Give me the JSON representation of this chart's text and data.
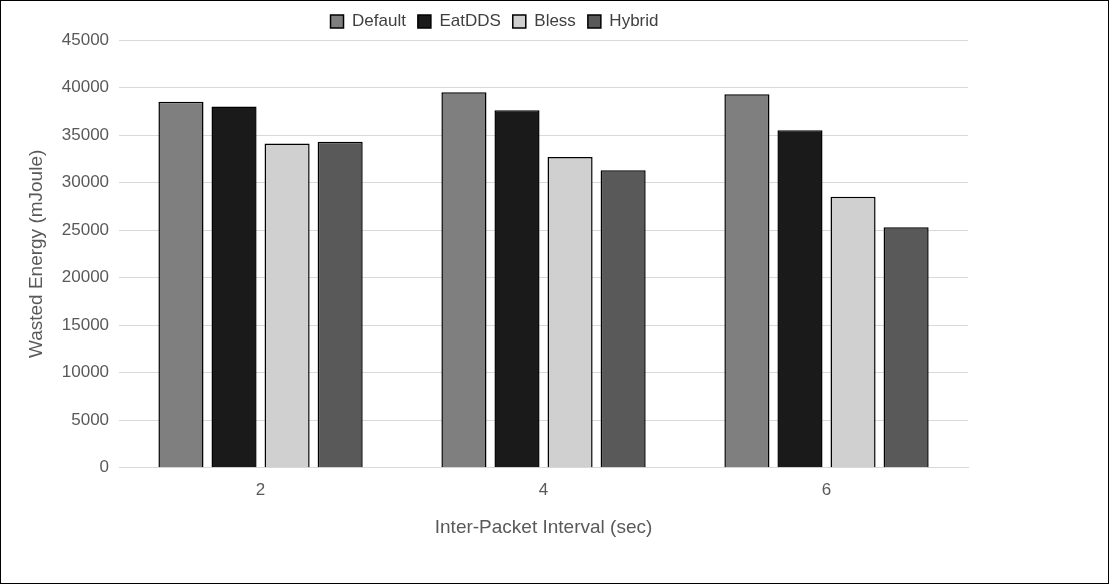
{
  "chart_data": {
    "type": "bar",
    "xlabel": "Inter-Packet Interval (sec)",
    "ylabel": "Wasted Energy (mJoule)",
    "categories": [
      "2",
      "4",
      "6"
    ],
    "series": [
      {
        "name": "Default",
        "color": "#7f7f7f",
        "values": [
          38500,
          39500,
          39300
        ]
      },
      {
        "name": "EatDDS",
        "color": "#1a1a1a",
        "values": [
          38000,
          37600,
          35500
        ]
      },
      {
        "name": "Bless",
        "color": "#d0d0d0",
        "values": [
          34100,
          32700,
          28500
        ]
      },
      {
        "name": "Hybrid",
        "color": "#595959",
        "values": [
          34300,
          31300,
          25300
        ]
      }
    ],
    "ylim": [
      0,
      45000
    ],
    "yticks": [
      0,
      5000,
      10000,
      15000,
      20000,
      25000,
      30000,
      35000,
      40000,
      45000
    ],
    "grid": "y",
    "legend": "top"
  }
}
